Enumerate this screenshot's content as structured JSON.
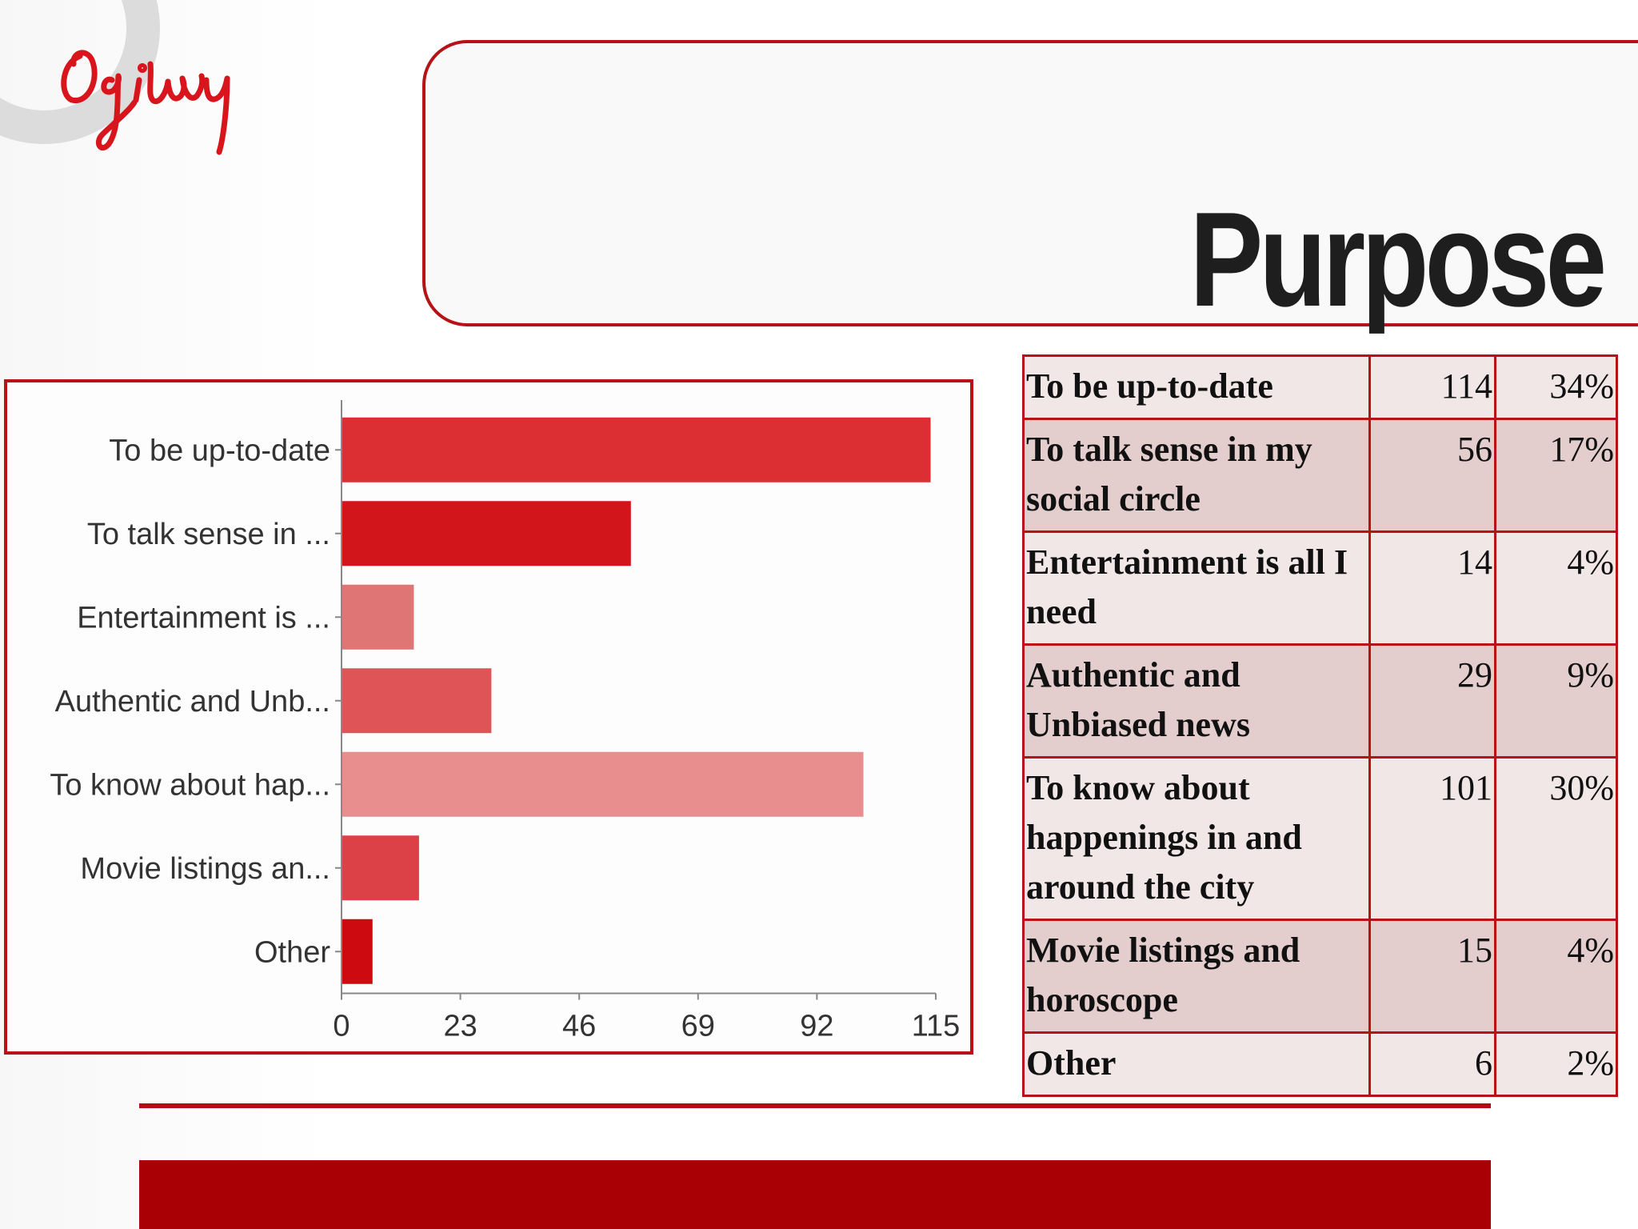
{
  "title": "Purpose",
  "logo": {
    "text": "Ogilvy",
    "color": "#d8151c",
    "ring_color": "#dcdcdc"
  },
  "colors": {
    "accent": "#b61218",
    "footer": "#a90006"
  },
  "chart_data": {
    "type": "bar",
    "orientation": "horizontal",
    "categories": [
      "To be up-to-date",
      "To talk sense in ...",
      "Entertainment is ...",
      "Authentic and Unb...",
      "To know about hap...",
      "Movie listings an...",
      "Other"
    ],
    "values": [
      114,
      56,
      14,
      29,
      101,
      15,
      6
    ],
    "bar_colors": [
      "#dc2f33",
      "#d2141b",
      "#e07575",
      "#de5457",
      "#e88e8f",
      "#dc4147",
      "#cc0a10"
    ],
    "xticks": [
      0,
      23,
      46,
      69,
      92,
      115
    ],
    "xlim": [
      0,
      115
    ],
    "grid": false,
    "legend": "none"
  },
  "table": {
    "rows": [
      {
        "label": "To be up-to-date",
        "count": "114",
        "percent": "34%"
      },
      {
        "label": "To talk sense in my social circle",
        "count": "56",
        "percent": "17%"
      },
      {
        "label": "Entertainment is all I need",
        "count": "14",
        "percent": "4%"
      },
      {
        "label": "Authentic and Unbiased news",
        "count": "29",
        "percent": "9%"
      },
      {
        "label": "To know about happenings in and around the city",
        "count": "101",
        "percent": "30%"
      },
      {
        "label": "Movie listings and horoscope",
        "count": "15",
        "percent": "4%"
      },
      {
        "label": "Other",
        "count": "6",
        "percent": "2%"
      }
    ]
  }
}
